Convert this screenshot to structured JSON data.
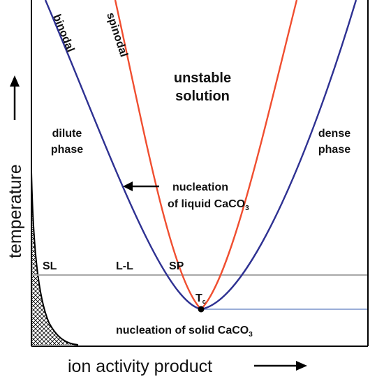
{
  "diagram": {
    "axes": {
      "x_label": "ion activity product",
      "y_label": "temperature"
    },
    "curves": {
      "binodal": {
        "label": "binodal",
        "color": "#2e3192"
      },
      "spinodal": {
        "label": "spinodal",
        "color": "#f04e30"
      }
    },
    "regions": {
      "unstable_line1": "unstable",
      "unstable_line2": "solution",
      "dilute_line1": "dilute",
      "dilute_line2": "phase",
      "dense_line1": "dense",
      "dense_line2": "phase"
    },
    "annotations": {
      "nucleation_liquid_line1": "nucleation",
      "nucleation_liquid_line2": "of liquid CaCO",
      "nucleation_liquid_sub": "3",
      "nucleation_solid": "nucleation of solid CaCO",
      "nucleation_solid_sub": "3",
      "tc_main": "T",
      "tc_sub": "c"
    },
    "line_labels": {
      "sl": "SL",
      "ll": "L-L",
      "sp": "SP"
    },
    "colors": {
      "horizontal_line": "#a8a8a8",
      "tc_line": "#9aaed8",
      "frame": "#000000"
    }
  }
}
